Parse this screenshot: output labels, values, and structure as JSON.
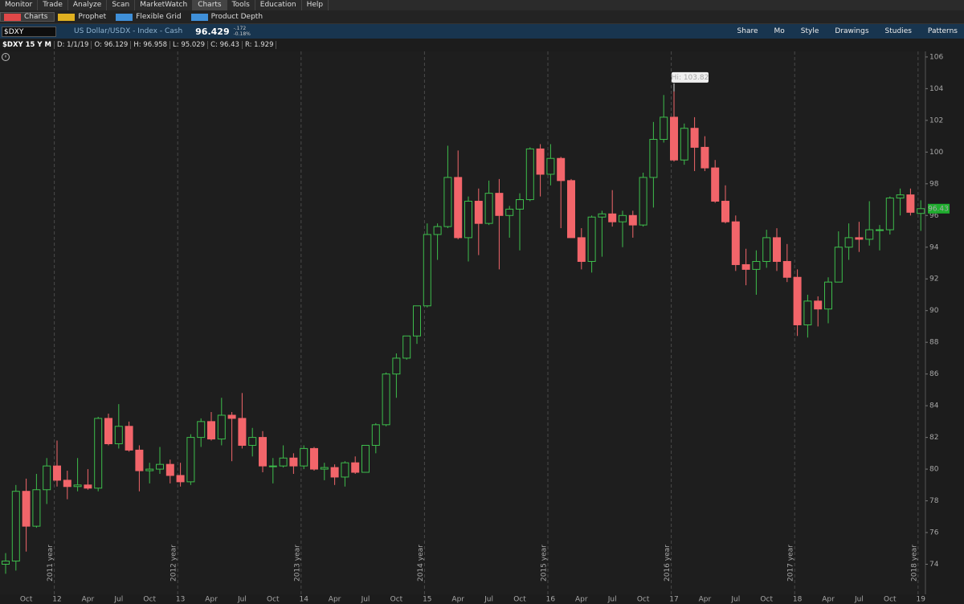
{
  "ui": {
    "menu": [
      "Monitor",
      "Trade",
      "Analyze",
      "Scan",
      "MarketWatch",
      "Charts",
      "Tools",
      "Education",
      "Help"
    ],
    "tabs": [
      "Charts",
      "Prophet",
      "Flexible Grid",
      "Product Depth"
    ],
    "symbol": "$DXY",
    "description": "US Dollar/USDX - Index - Cash",
    "last": "96.429",
    "change": "-.172",
    "change_pct": "-0.18%",
    "toolbar": [
      "Share",
      "Mo",
      "Style",
      "Drawings",
      "Studies",
      "Patterns"
    ],
    "info": [
      "$DXY 15 Y M",
      "D: 1/1/19",
      "O: 96.129",
      "H: 96.958",
      "L: 95.029",
      "C: 96.43",
      "R: 1.929"
    ]
  },
  "chart_data": {
    "type": "candlestick",
    "categories": [
      null,
      null,
      "Oct",
      null,
      null,
      "12",
      null,
      null,
      "Apr",
      null,
      null,
      "Jul",
      null,
      null,
      "Oct",
      null,
      null,
      "13",
      null,
      null,
      "Apr",
      null,
      null,
      "Jul",
      null,
      null,
      "Oct",
      null,
      null,
      "14",
      null,
      null,
      "Apr",
      null,
      null,
      "Jul",
      null,
      null,
      "Oct",
      null,
      null,
      "15",
      null,
      null,
      "Apr",
      null,
      null,
      "Jul",
      null,
      null,
      "Oct",
      null,
      null,
      "16",
      null,
      null,
      "Apr",
      null,
      null,
      "Jul",
      null,
      null,
      "Oct",
      null,
      null,
      "17",
      null,
      null,
      "Apr",
      null,
      null,
      "Jul",
      null,
      null,
      "Oct",
      null,
      null,
      "18",
      null,
      null,
      "Apr",
      null,
      null,
      "Jul",
      null,
      null,
      "Oct",
      null,
      null,
      "19"
    ],
    "open": [
      74.0,
      74.2,
      78.6,
      76.4,
      78.7,
      80.2,
      79.3,
      78.9,
      79.0,
      78.8,
      83.2,
      81.6,
      82.7,
      81.2,
      79.9,
      80.0,
      80.3,
      79.6,
      79.2,
      82.0,
      83.0,
      81.9,
      83.4,
      83.2,
      81.5,
      82.0,
      80.2,
      80.2,
      80.7,
      80.2,
      81.3,
      80.0,
      80.1,
      79.5,
      80.4,
      79.8,
      81.5,
      82.8,
      86.0,
      87.0,
      88.4,
      90.3,
      94.8,
      95.3,
      98.4,
      94.6,
      96.9,
      95.5,
      97.4,
      96.0,
      96.4,
      97.0,
      100.2,
      98.6,
      99.6,
      98.2,
      94.6,
      93.1,
      95.9,
      96.1,
      95.6,
      96.0,
      95.4,
      98.4,
      100.8,
      102.2,
      99.5,
      101.5,
      100.3,
      99.0,
      96.9,
      95.6,
      92.9,
      92.6,
      93.1,
      94.6,
      93.1,
      92.1,
      89.1,
      90.6,
      90.1,
      91.8,
      94.0,
      94.6,
      94.5,
      95.1,
      95.1,
      97.1,
      97.3,
      96.129
    ],
    "high": [
      74.7,
      79.0,
      79.4,
      79.7,
      80.7,
      81.8,
      79.9,
      80.7,
      80.0,
      83.3,
      83.5,
      84.1,
      83.0,
      81.5,
      80.4,
      81.4,
      80.6,
      80.4,
      82.2,
      83.2,
      83.6,
      84.5,
      83.6,
      84.8,
      82.6,
      82.4,
      80.7,
      81.5,
      81.0,
      81.5,
      81.4,
      80.4,
      80.3,
      80.5,
      80.8,
      81.5,
      82.9,
      86.1,
      87.3,
      88.4,
      90.3,
      95.5,
      95.5,
      100.4,
      100.1,
      97.2,
      97.7,
      98.2,
      98.3,
      96.6,
      97.4,
      100.3,
      100.5,
      100.5,
      99.7,
      98.3,
      95.2,
      96.0,
      96.3,
      97.6,
      96.3,
      96.3,
      98.7,
      101.9,
      103.6,
      103.82,
      101.8,
      102.2,
      101.0,
      99.5,
      97.9,
      96.0,
      93.9,
      93.8,
      95.1,
      95.2,
      94.2,
      92.6,
      91.0,
      90.9,
      92.1,
      95.0,
      95.5,
      95.6,
      96.9,
      95.4,
      97.2,
      97.7,
      97.7,
      96.958
    ],
    "low": [
      73.4,
      73.6,
      74.8,
      76.3,
      77.8,
      78.9,
      78.1,
      78.6,
      78.7,
      78.6,
      81.5,
      81.3,
      81.1,
      78.6,
      79.1,
      79.7,
      79.1,
      78.9,
      79.0,
      81.4,
      81.8,
      81.5,
      80.5,
      81.3,
      80.8,
      79.8,
      79.1,
      80.1,
      79.7,
      80.0,
      79.9,
      79.3,
      79.0,
      78.9,
      79.7,
      79.8,
      81.0,
      82.7,
      84.5,
      86.9,
      87.9,
      90.2,
      93.2,
      95.2,
      94.5,
      93.1,
      93.5,
      95.4,
      92.6,
      94.6,
      93.8,
      96.9,
      97.2,
      97.9,
      95.2,
      94.6,
      92.6,
      92.4,
      93.4,
      95.3,
      94.0,
      94.6,
      95.3,
      96.5,
      100.6,
      99.4,
      99.2,
      98.8,
      98.8,
      96.8,
      95.5,
      92.5,
      91.6,
      91.0,
      92.7,
      92.5,
      91.8,
      88.4,
      88.3,
      89.0,
      89.2,
      91.8,
      93.2,
      93.7,
      94.1,
      93.8,
      94.8,
      96.0,
      96.0,
      95.029
    ],
    "close": [
      74.2,
      78.6,
      76.4,
      78.7,
      80.2,
      79.3,
      78.9,
      79.0,
      78.8,
      83.2,
      81.6,
      82.7,
      81.2,
      79.9,
      80.0,
      80.3,
      79.6,
      79.2,
      82.0,
      83.0,
      81.9,
      83.4,
      83.2,
      81.5,
      82.0,
      80.2,
      80.2,
      80.7,
      80.2,
      81.3,
      80.0,
      80.1,
      79.5,
      80.4,
      79.8,
      81.5,
      82.8,
      86.0,
      87.0,
      88.4,
      90.3,
      94.8,
      95.3,
      98.4,
      94.6,
      96.9,
      95.5,
      97.4,
      96.0,
      96.4,
      97.0,
      100.2,
      98.6,
      99.6,
      98.2,
      94.6,
      93.1,
      95.9,
      96.1,
      95.6,
      96.0,
      95.4,
      98.4,
      100.8,
      102.2,
      99.5,
      101.5,
      100.3,
      99.0,
      96.9,
      95.6,
      92.9,
      92.6,
      93.1,
      94.6,
      93.1,
      92.1,
      89.1,
      90.6,
      90.1,
      91.8,
      94.0,
      94.6,
      94.5,
      95.1,
      95.1,
      97.1,
      97.3,
      96.2,
      96.43
    ],
    "up_color": "#3dbd4c",
    "down_color": "#f2656a",
    "ylim": [
      72.1,
      106.35
    ],
    "yticks": [
      74,
      76,
      78,
      80,
      82,
      84,
      86,
      88,
      90,
      92,
      94,
      96,
      98,
      100,
      102,
      104,
      106
    ],
    "year_labels": [
      "2011 year",
      "2012 year",
      "2013 year",
      "2014 year",
      "2015 year",
      "2016 year",
      "2017 year",
      "2018 year"
    ],
    "high_marker": {
      "value": 103.82,
      "label": "Hi: 103.82"
    },
    "last_price": {
      "value": 96.43,
      "label": "96.43"
    }
  }
}
